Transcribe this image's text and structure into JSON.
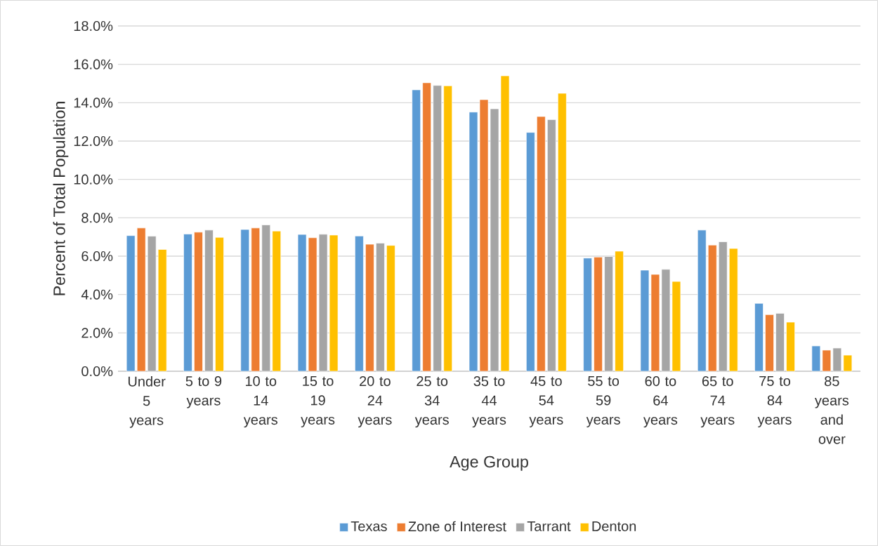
{
  "chart_data": {
    "type": "bar",
    "xlabel": "Age Group",
    "ylabel": "Percent of Total Population",
    "categories": [
      "Under 5 years",
      "5 to 9 years",
      "10 to 14 years",
      "15 to 19 years",
      "20 to 24 years",
      "25 to 34 years",
      "35 to 44 years",
      "45 to 54 years",
      "55 to 59 years",
      "60 to 64 years",
      "65 to 74 years",
      "75 to 84 years",
      "85 years and over"
    ],
    "series": [
      {
        "name": "Texas",
        "color": "#5b9bd5",
        "values": [
          7.07,
          7.15,
          7.39,
          7.13,
          7.05,
          14.67,
          13.51,
          12.45,
          5.9,
          5.27,
          7.36,
          3.54,
          1.32
        ]
      },
      {
        "name": "Zone of Interest",
        "color": "#ed7d31",
        "values": [
          7.47,
          7.25,
          7.47,
          6.96,
          6.62,
          15.04,
          14.16,
          13.28,
          5.95,
          5.05,
          6.58,
          2.95,
          1.1
        ]
      },
      {
        "name": "Tarrant",
        "color": "#a5a5a5",
        "values": [
          7.04,
          7.36,
          7.63,
          7.14,
          6.68,
          14.9,
          13.68,
          13.12,
          5.98,
          5.31,
          6.75,
          3.02,
          1.21
        ]
      },
      {
        "name": "Denton",
        "color": "#ffc000",
        "values": [
          6.35,
          6.98,
          7.31,
          7.1,
          6.56,
          14.88,
          15.4,
          14.49,
          6.26,
          4.68,
          6.4,
          2.56,
          0.84
        ]
      }
    ],
    "ylim": [
      0,
      18
    ],
    "yticks": [
      {
        "value": 0,
        "label": "0.0%"
      },
      {
        "value": 2,
        "label": "2.0%"
      },
      {
        "value": 4,
        "label": "4.0%"
      },
      {
        "value": 6,
        "label": "6.0%"
      },
      {
        "value": 8,
        "label": "8.0%"
      },
      {
        "value": 10,
        "label": "10.0%"
      },
      {
        "value": 12,
        "label": "12.0%"
      },
      {
        "value": 14,
        "label": "14.0%"
      },
      {
        "value": 16,
        "label": "16.0%"
      },
      {
        "value": 18,
        "label": "18.0%"
      }
    ],
    "grid": "y",
    "legend": "bottom"
  }
}
